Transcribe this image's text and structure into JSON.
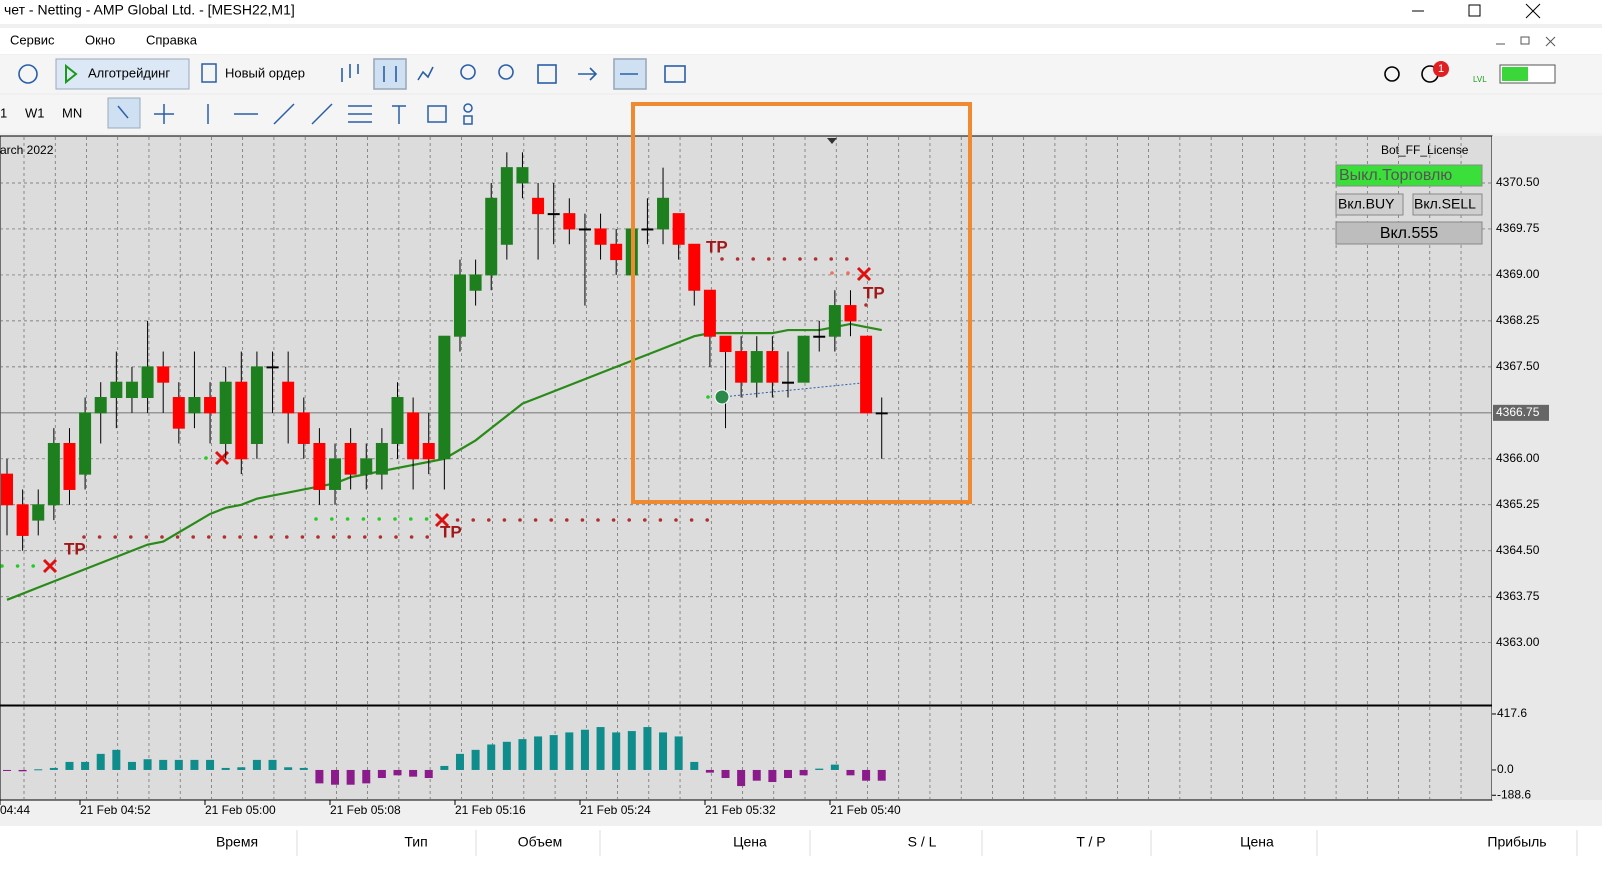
{
  "window": {
    "title": "чет - Netting - AMP Global Ltd. - [MESH22,M1]"
  },
  "menu": [
    "Сервис",
    "Окно",
    "Справка"
  ],
  "toolbar": {
    "algo": "Алготрейдинг",
    "new_order": "Новый ордер",
    "badge": "1",
    "lvl": "LVL"
  },
  "timeframes": [
    "1",
    "W1",
    "MN"
  ],
  "chart_data": {
    "type": "candlestick",
    "date_label": "arch 2022",
    "up_color": "#1e7f1e",
    "down_color": "#ff0000",
    "ma_color": "#2a8a1a",
    "ylim": [
      4362,
      4371.25
    ],
    "yticks": [
      {
        "value": 4370.5,
        "label": "4370.50"
      },
      4369.75,
      {
        "value": 4369,
        "label": "4369.00"
      },
      4368.25,
      {
        "value": 4367.5,
        "label": "4367.50"
      },
      {
        "value": 4366,
        "label": "4366.00"
      },
      4365.25,
      {
        "value": 4364.5,
        "label": "4364.50"
      },
      4363.75,
      {
        "value": 4363,
        "label": "4363.00"
      }
    ],
    "current_price": 4366.75,
    "time_labels": [
      "04:44",
      "21 Feb 04:52",
      "21 Feb 05:00",
      "21 Feb 05:08",
      "21 Feb 05:16",
      "21 Feb 05:24",
      "21 Feb 05:32",
      "21 Feb 05:40"
    ],
    "ohlc": [
      [
        4365.75,
        4366,
        4364.75,
        4365.25
      ],
      [
        4365.25,
        4365.5,
        4364.5,
        4364.75
      ],
      [
        4365,
        4365.5,
        4364.75,
        4365.25
      ],
      [
        4365.25,
        4366.5,
        4365,
        4366.25
      ],
      [
        4366.25,
        4366.5,
        4365.25,
        4365.5
      ],
      [
        4365.75,
        4367,
        4365.5,
        4366.75
      ],
      [
        4366.75,
        4367.25,
        4366.25,
        4367
      ],
      [
        4367,
        4367.75,
        4366.5,
        4367.25
      ],
      [
        4367,
        4367.5,
        4366.75,
        4367.25
      ],
      [
        4367,
        4368.25,
        4366.75,
        4367.5
      ],
      [
        4367.5,
        4367.75,
        4366.75,
        4367.25
      ],
      [
        4367,
        4367.25,
        4366.25,
        4366.5
      ],
      [
        4366.75,
        4367.75,
        4366.5,
        4367
      ],
      [
        4367,
        4367.25,
        4366.25,
        4366.75
      ],
      [
        4366.25,
        4367.5,
        4366,
        4367.25
      ],
      [
        4367.25,
        4367.75,
        4365.75,
        4366
      ],
      [
        4366.25,
        4367.75,
        4366,
        4367.5
      ],
      [
        4367.5,
        4367.75,
        4366.75,
        4367.5
      ],
      [
        4367.25,
        4367.75,
        4366.25,
        4366.75
      ],
      [
        4366.75,
        4367,
        4366,
        4366.25
      ],
      [
        4366.25,
        4366.5,
        4365.25,
        4365.5
      ],
      [
        4365.5,
        4366.25,
        4365.25,
        4366
      ],
      [
        4366.25,
        4366.5,
        4365.5,
        4365.75
      ],
      [
        4365.75,
        4366.25,
        4365.5,
        4366
      ],
      [
        4365.75,
        4366.5,
        4365.5,
        4366.25
      ],
      [
        4366.25,
        4367.25,
        4366,
        4367
      ],
      [
        4366.75,
        4367,
        4365.5,
        4366
      ],
      [
        4366.25,
        4366.75,
        4365.75,
        4366
      ],
      [
        4366,
        4368,
        4365.5,
        4368
      ],
      [
        4368,
        4369.25,
        4367.75,
        4369
      ],
      [
        4368.75,
        4369.25,
        4368.5,
        4369
      ],
      [
        4369,
        4370.5,
        4368.75,
        4370.25
      ],
      [
        4369.5,
        4371,
        4369.25,
        4370.75
      ],
      [
        4370.5,
        4371,
        4370.25,
        4370.75
      ],
      [
        4370.25,
        4370.5,
        4369.25,
        4370
      ],
      [
        4370,
        4370.5,
        4369.5,
        4370
      ],
      [
        4370,
        4370.25,
        4369.5,
        4369.75
      ],
      [
        4369.75,
        4370,
        4368.5,
        4369.75
      ],
      [
        4369.75,
        4370,
        4369.25,
        4369.5
      ],
      [
        4369.5,
        4369.75,
        4369,
        4369.25
      ],
      [
        4369,
        4370,
        4369,
        4369.75
      ],
      [
        4369.75,
        4370.25,
        4369.5,
        4369.75
      ],
      [
        4369.75,
        4370.75,
        4369.5,
        4370.25
      ],
      [
        4370,
        4370,
        4369.25,
        4369.5
      ],
      [
        4369.5,
        4369.5,
        4368.5,
        4368.75
      ],
      [
        4368.75,
        4368.75,
        4367.5,
        4368
      ],
      [
        4368,
        4368,
        4366.5,
        4367.75
      ],
      [
        4367.75,
        4368,
        4367,
        4367.25
      ],
      [
        4367.25,
        4368,
        4367,
        4367.75
      ],
      [
        4367.75,
        4368,
        4367,
        4367.25
      ],
      [
        4367.25,
        4367.75,
        4367,
        4367.25
      ],
      [
        4367.25,
        4368,
        4367.25,
        4368
      ],
      [
        4368,
        4368.25,
        4367.75,
        4368
      ],
      [
        4368,
        4368.75,
        4367.75,
        4368.5
      ],
      [
        4368.5,
        4368.75,
        4368,
        4368.25
      ],
      [
        4368,
        4368,
        4366.75,
        4366.75
      ],
      [
        4366.75,
        4367,
        4366,
        4366.75
      ]
    ],
    "ma": [
      4363.7,
      4363.8,
      4363.9,
      4364,
      4364.1,
      4364.2,
      4364.3,
      4364.4,
      4364.5,
      4364.6,
      4364.65,
      4364.8,
      4364.95,
      4365.1,
      4365.2,
      4365.25,
      4365.35,
      4365.4,
      4365.45,
      4365.5,
      4365.55,
      4365.6,
      4365.7,
      4365.75,
      4365.8,
      4365.85,
      4365.9,
      4365.95,
      4366,
      4366.15,
      4366.3,
      4366.5,
      4366.7,
      4366.9,
      4367,
      4367.1,
      4367.2,
      4367.3,
      4367.4,
      4367.5,
      4367.6,
      4367.7,
      4367.8,
      4367.9,
      4368,
      4368.05,
      4368.05,
      4368.05,
      4368.05,
      4368.05,
      4368.1,
      4368.1,
      4368.1,
      4368.15,
      4368.2,
      4368.15,
      4368.1
    ],
    "annotations": [
      "TP",
      "TP",
      "TP",
      "TP"
    ],
    "indicator": {
      "ylim": [
        -224,
        477
      ],
      "yticks": [
        417.6,
        {
          "value": 0,
          "label": "0.0"
        },
        -188.6
      ],
      "pos_color": "#0f8c8c",
      "neg_color": "#8b1a8b",
      "values": [
        -5,
        -10,
        5,
        15,
        60,
        60,
        120,
        150,
        60,
        80,
        75,
        75,
        75,
        75,
        15,
        20,
        75,
        75,
        20,
        15,
        -100,
        -110,
        -110,
        -100,
        -60,
        -40,
        -50,
        -60,
        30,
        120,
        150,
        190,
        210,
        230,
        250,
        260,
        280,
        300,
        320,
        280,
        290,
        320,
        280,
        250,
        60,
        -20,
        -60,
        -120,
        -80,
        -90,
        -60,
        -40,
        10,
        40,
        -40,
        -80,
        -80
      ]
    }
  },
  "bot_panel": {
    "license": "Bot_FF_License",
    "trade_off": "Выкл.Торговлю",
    "buy": "Вкл.BUY",
    "sell": "Вкл.SELL",
    "btn555": "Вкл.555"
  },
  "table_header": [
    "Время",
    "Тип",
    "Объем",
    "Цена",
    "S / L",
    "T / P",
    "Цена",
    "Прибыль"
  ]
}
